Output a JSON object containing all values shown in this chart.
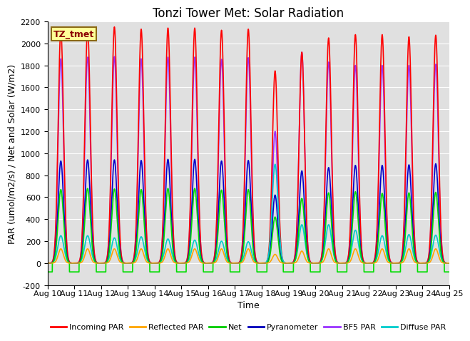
{
  "title": "Tonzi Tower Met: Solar Radiation",
  "xlabel": "Time",
  "ylabel": "PAR (umol/m2/s) / Net and Solar (W/m2)",
  "ylim": [
    -200,
    2200
  ],
  "yticks": [
    -200,
    0,
    200,
    400,
    600,
    800,
    1000,
    1200,
    1400,
    1600,
    1800,
    2000,
    2200
  ],
  "num_days": 15,
  "annotation_text": "TZ_tmet",
  "annotation_color": "#8B0000",
  "annotation_bg": "#FFFF99",
  "annotation_border": "#8B6914",
  "bg_color": "#E0E0E0",
  "grid_color": "#FFFFFF",
  "xtick_labels": [
    "Aug 10",
    "Aug 11",
    "Aug 12",
    "Aug 13",
    "Aug 14",
    "Aug 15",
    "Aug 16",
    "Aug 17",
    "Aug 18",
    "Aug 19",
    "Aug 20",
    "Aug 21",
    "Aug 22",
    "Aug 23",
    "Aug 24",
    "Aug 25"
  ],
  "xtick_positions": [
    0,
    1,
    2,
    3,
    4,
    5,
    6,
    7,
    8,
    9,
    10,
    11,
    12,
    13,
    14,
    15
  ],
  "title_fontsize": 12,
  "label_fontsize": 9,
  "tick_fontsize": 8,
  "series_colors": {
    "incoming": "#FF0000",
    "reflected": "#FFA500",
    "net": "#00DD00",
    "pyranometer": "#0000CC",
    "bf5": "#9933FF",
    "diffuse": "#00CCCC"
  },
  "legend_colors": {
    "incoming": "#FF0000",
    "reflected": "#FFA500",
    "net": "#00CC00",
    "pyranometer": "#0000BB",
    "bf5": "#9933FF",
    "diffuse": "#00CCCC"
  }
}
